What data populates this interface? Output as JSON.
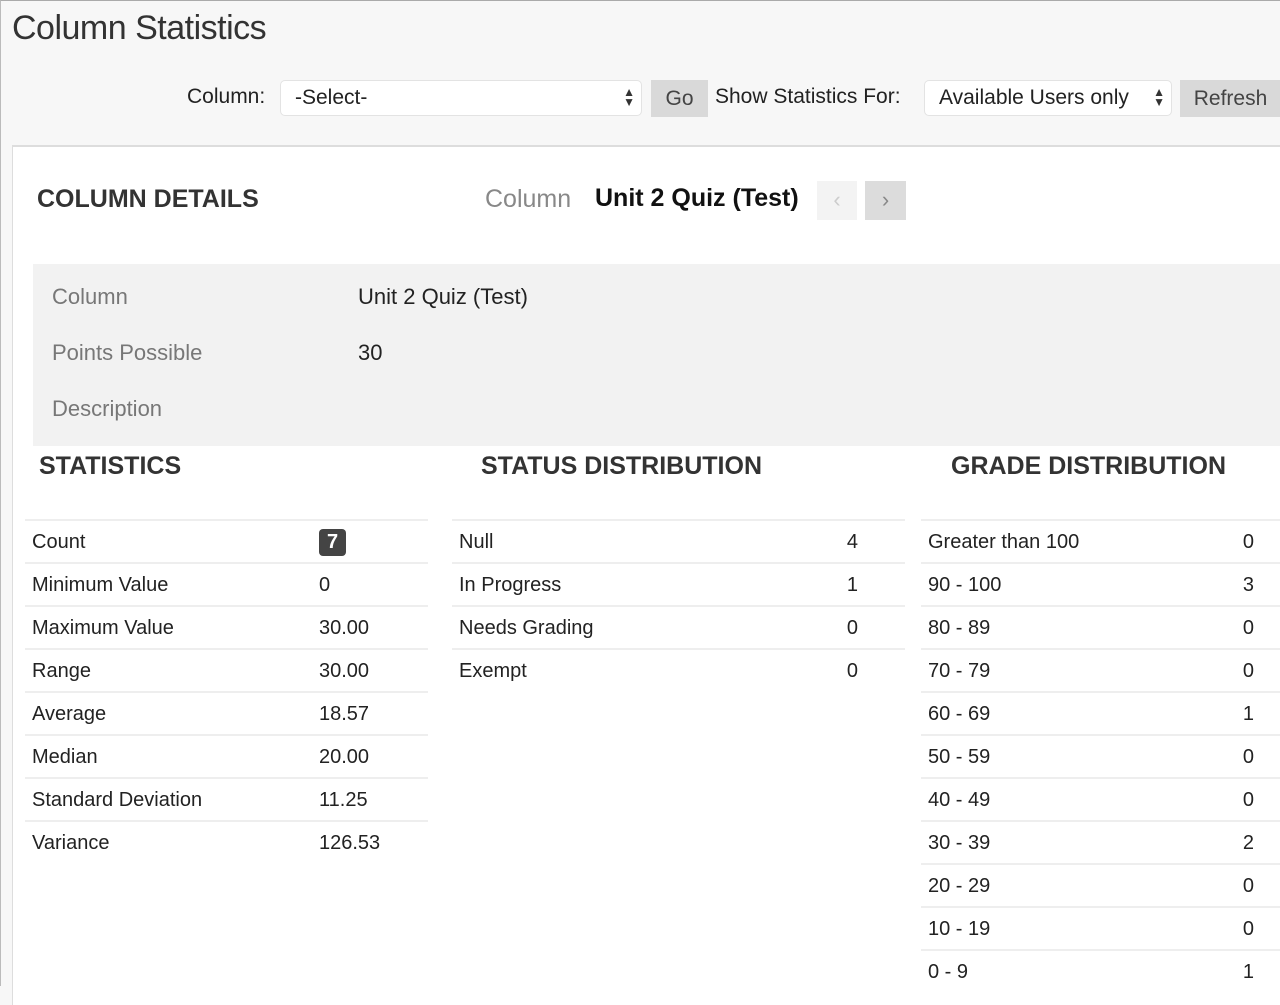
{
  "title": "Column Statistics",
  "toolbar": {
    "column_label": "Column:",
    "column_select": "-Select-",
    "go": "Go",
    "show_for_label": "Show Statistics For:",
    "show_for_select": "Available Users only",
    "refresh": "Refresh"
  },
  "details": {
    "heading": "COLUMN DETAILS",
    "nav_label": "Column",
    "nav_value": "Unit 2 Quiz (Test)",
    "rows": [
      {
        "label": "Column",
        "value": "Unit 2 Quiz (Test)"
      },
      {
        "label": "Points Possible",
        "value": "30"
      },
      {
        "label": "Description",
        "value": ""
      }
    ]
  },
  "statistics": {
    "heading": "STATISTICS",
    "rows": [
      {
        "label": "Count",
        "value": "7"
      },
      {
        "label": "Minimum Value",
        "value": "0"
      },
      {
        "label": "Maximum Value",
        "value": "30.00"
      },
      {
        "label": "Range",
        "value": "30.00"
      },
      {
        "label": "Average",
        "value": "18.57"
      },
      {
        "label": "Median",
        "value": "20.00"
      },
      {
        "label": "Standard Deviation",
        "value": "11.25"
      },
      {
        "label": "Variance",
        "value": "126.53"
      }
    ]
  },
  "status": {
    "heading": "STATUS DISTRIBUTION",
    "rows": [
      {
        "label": "Null",
        "value": "4"
      },
      {
        "label": "In Progress",
        "value": "1"
      },
      {
        "label": "Needs Grading",
        "value": "0"
      },
      {
        "label": "Exempt",
        "value": "0"
      }
    ]
  },
  "grade": {
    "heading": "GRADE DISTRIBUTION",
    "rows": [
      {
        "label": "Greater than 100",
        "value": "0"
      },
      {
        "label": "90 - 100",
        "value": "3"
      },
      {
        "label": "80 - 89",
        "value": "0"
      },
      {
        "label": "70 - 79",
        "value": "0"
      },
      {
        "label": "60 - 69",
        "value": "1"
      },
      {
        "label": "50 - 59",
        "value": "0"
      },
      {
        "label": "40 - 49",
        "value": "0"
      },
      {
        "label": "30 - 39",
        "value": "2"
      },
      {
        "label": "20 - 29",
        "value": "0"
      },
      {
        "label": "10 - 19",
        "value": "0"
      },
      {
        "label": "0 - 9",
        "value": "1"
      }
    ]
  }
}
